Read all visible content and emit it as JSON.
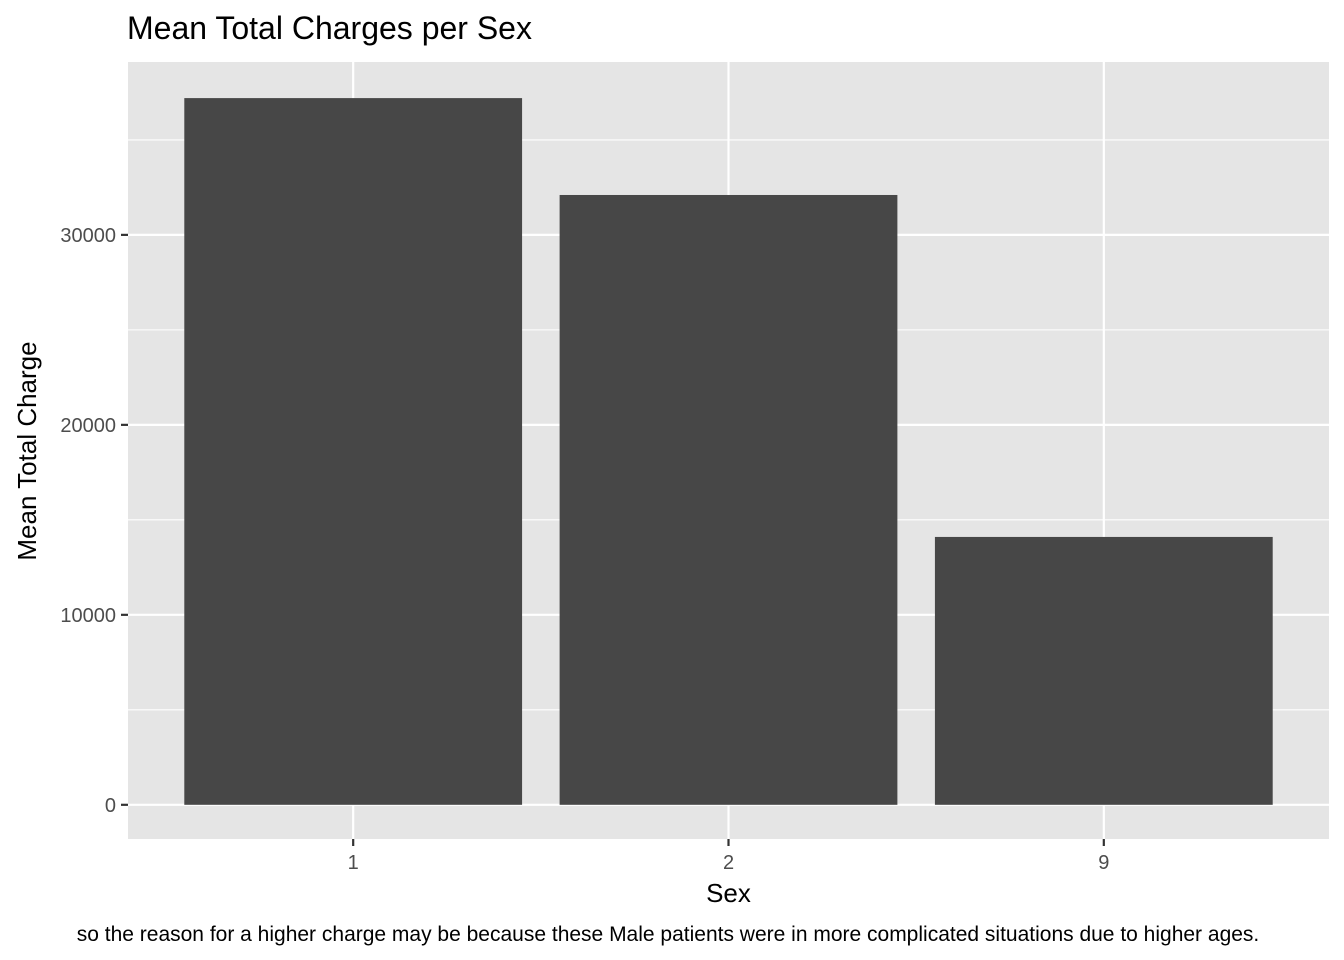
{
  "chart_data": {
    "type": "bar",
    "title": "Mean Total Charges per Sex",
    "xlabel": "Sex",
    "ylabel": "Mean Total Charge",
    "categories": [
      "1",
      "2",
      "9"
    ],
    "values": [
      37200,
      32100,
      14100
    ],
    "ylim": [
      -1800,
      39100
    ],
    "yticks": [
      0,
      10000,
      20000,
      30000
    ],
    "ytick_labels": [
      "0",
      "10000",
      "20000",
      "30000"
    ],
    "grid": true,
    "caption": "so the reason for a higher charge may be because these Male patients were in more complicated situations due to higher ages."
  },
  "colors": {
    "panel_background": "#e5e5e5",
    "grid_line": "#ffffff",
    "bar_fill": "#474747",
    "tick_text": "#4d4d4d",
    "tick_mark": "#333333",
    "text": "#000000"
  }
}
